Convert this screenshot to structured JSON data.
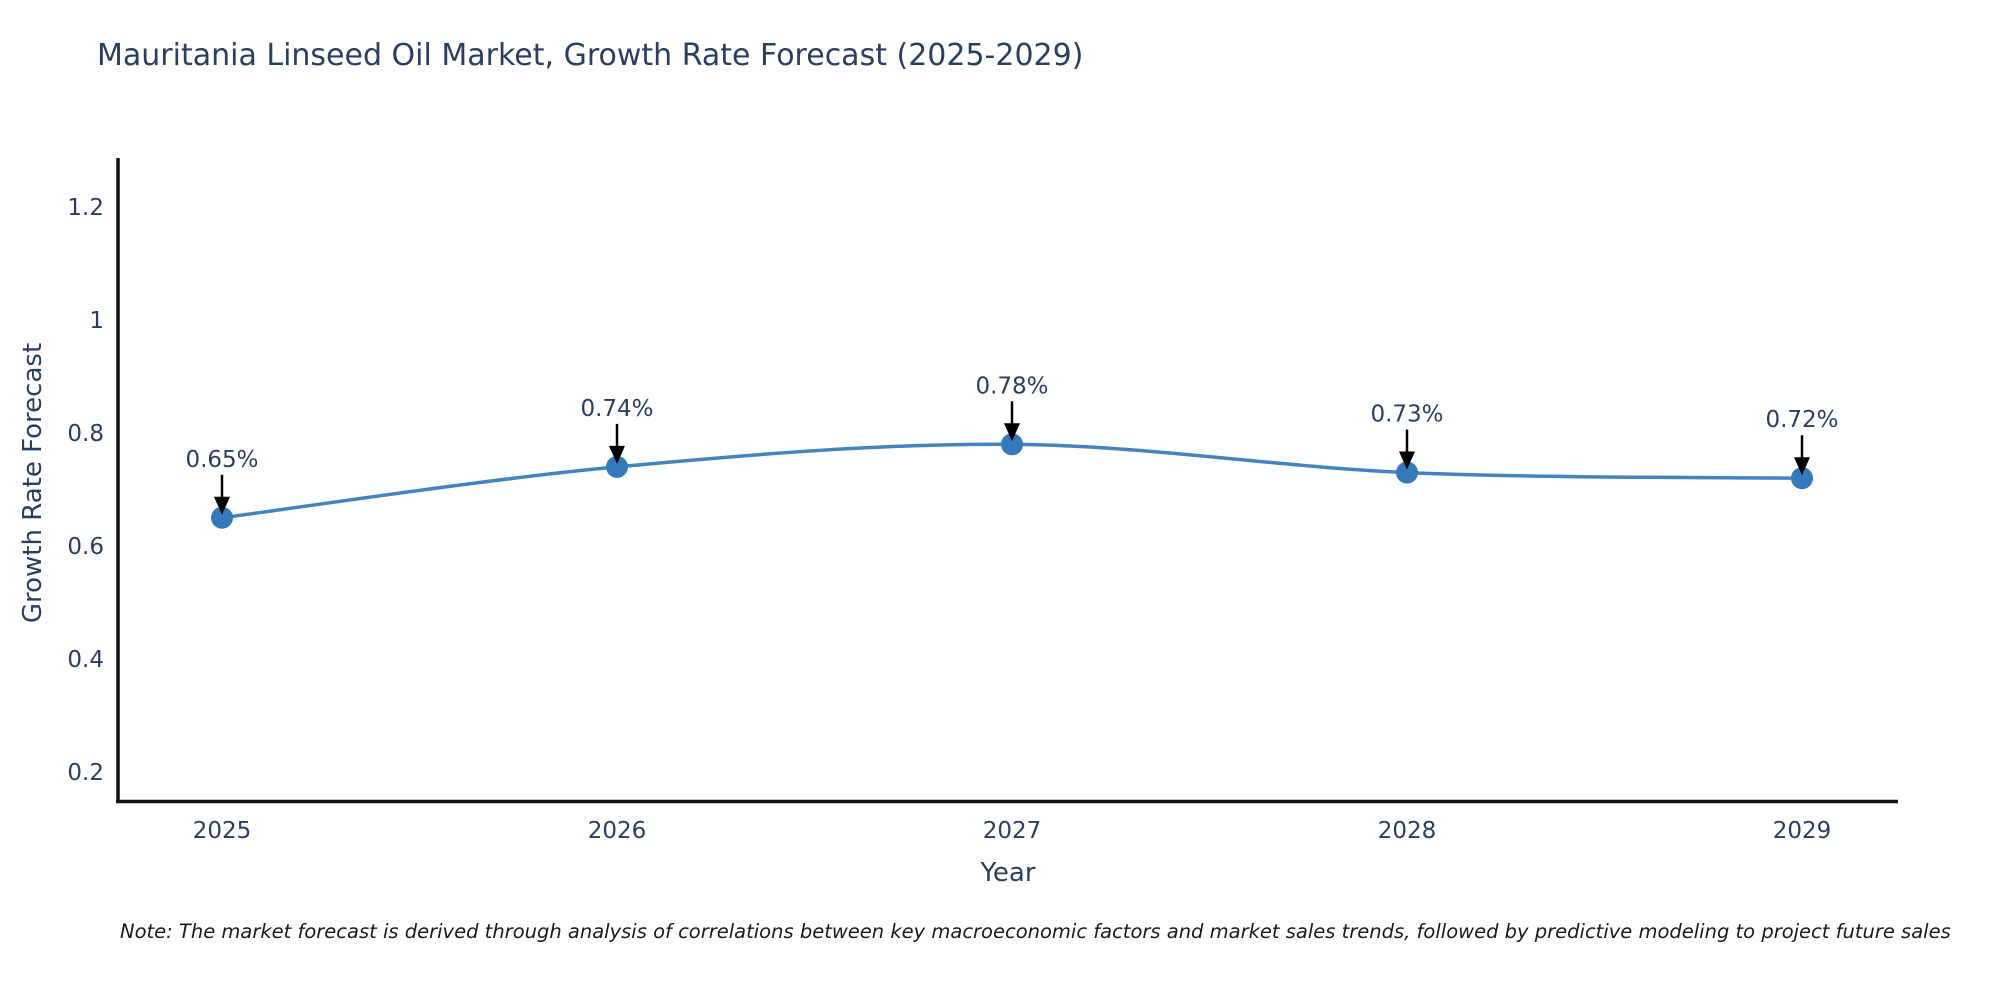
{
  "note": "Note: The market forecast is derived through analysis of correlations between key macroeconomic factors and market sales trends, followed by predictive modeling to project future sales",
  "chart_data": {
    "type": "line",
    "title": "Mauritania Linseed Oil Market, Growth Rate Forecast (2025-2029)",
    "xlabel": "Year",
    "ylabel": "Growth Rate Forecast",
    "x": [
      "2025",
      "2026",
      "2027",
      "2028",
      "2029"
    ],
    "values": [
      0.65,
      0.74,
      0.78,
      0.73,
      0.72
    ],
    "point_labels": [
      "0.65%",
      "0.74%",
      "0.78%",
      "0.73%",
      "0.72%"
    ],
    "ytick_values": [
      0.2,
      0.4,
      0.6,
      0.8,
      1,
      1.2
    ],
    "ytick_labels": [
      "0.2",
      "0.4",
      "0.6",
      "0.8",
      "1",
      "1.2"
    ],
    "ylim": [
      0.14,
      1.28
    ],
    "grid": false,
    "line_shape": "spline",
    "legend": "none",
    "colors": {
      "line": "#4384bf",
      "marker": "#3579bd",
      "axis": "#111111",
      "tick_text": "#2a3f5f",
      "annotation_text": "#2a3f5f",
      "annotation_arrow": "#000000"
    }
  }
}
